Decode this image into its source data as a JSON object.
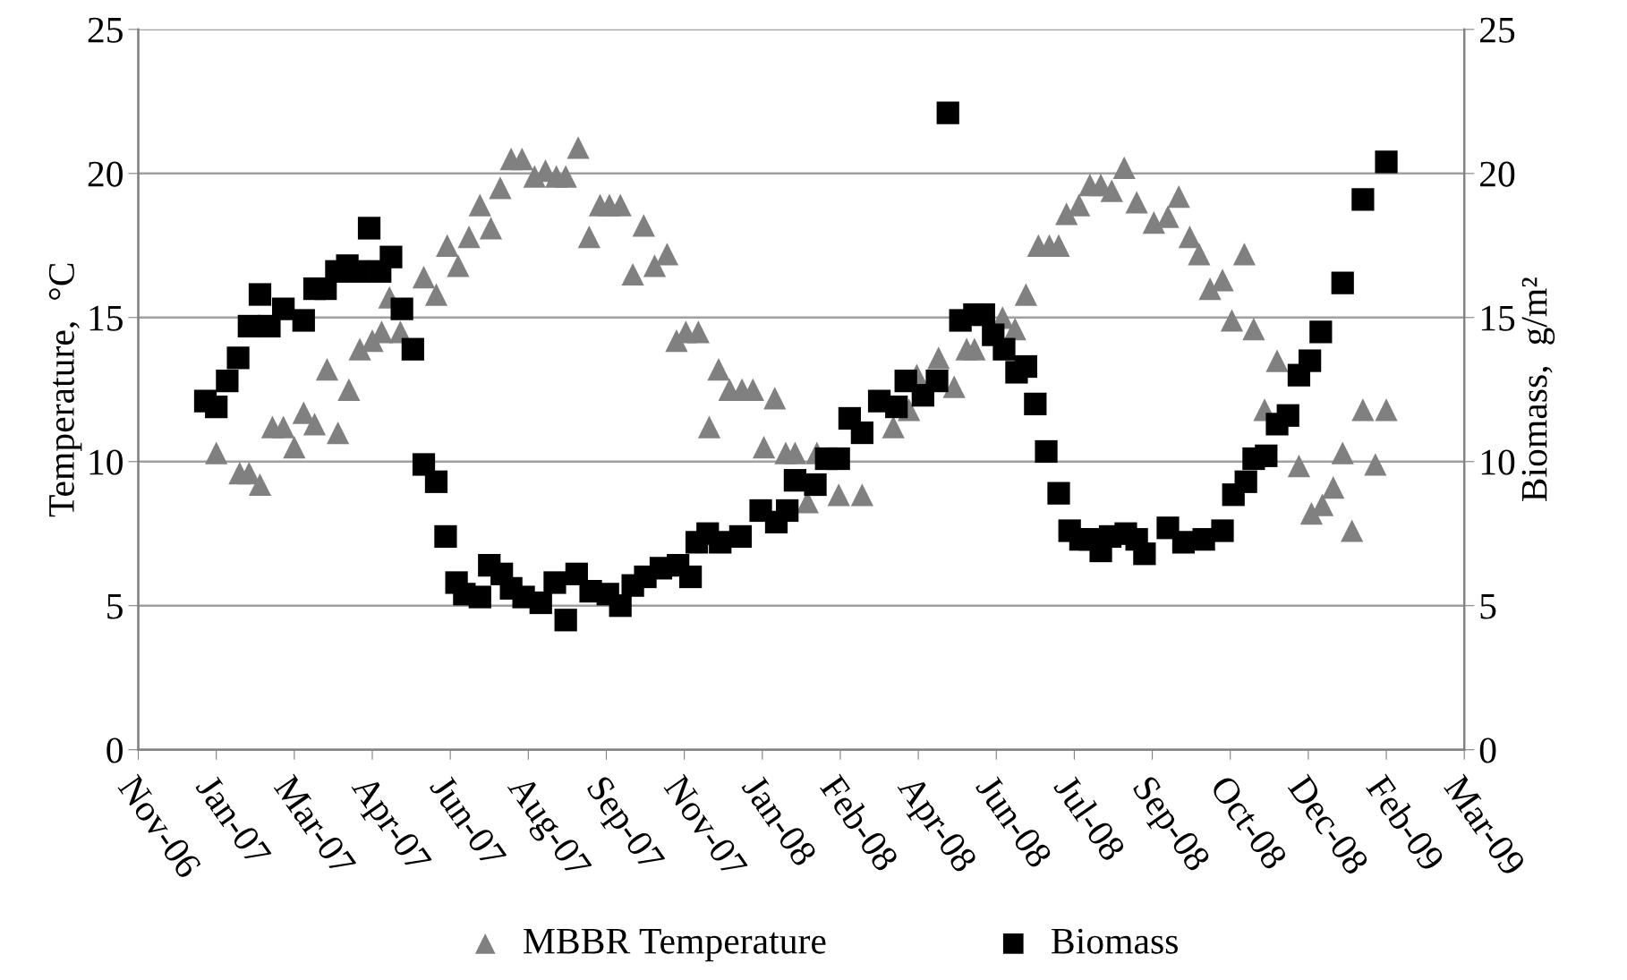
{
  "chart_data": {
    "type": "scatter",
    "ylabel": "Temperature,  °C",
    "y2label": "Biomass,  g/m²",
    "xlim": [
      "2006-11-30",
      "2009-03-29"
    ],
    "xticks": [
      {
        "value": "2006-11-30",
        "label": "Nov-06"
      },
      {
        "value": "2007-01-19",
        "label": "Jan-07"
      },
      {
        "value": "2007-03-10",
        "label": "Mar-07"
      },
      {
        "value": "2007-04-29",
        "label": "Apr-07"
      },
      {
        "value": "2007-06-18",
        "label": "Jun-07"
      },
      {
        "value": "2007-08-07",
        "label": "Aug-07"
      },
      {
        "value": "2007-09-26",
        "label": "Sep-07"
      },
      {
        "value": "2007-11-15",
        "label": "Nov-07"
      },
      {
        "value": "2008-01-04",
        "label": "Jan-08"
      },
      {
        "value": "2008-02-23",
        "label": "Feb-08"
      },
      {
        "value": "2008-04-13",
        "label": "Apr-08"
      },
      {
        "value": "2008-06-02",
        "label": "Jun-08"
      },
      {
        "value": "2008-07-22",
        "label": "Jul-08"
      },
      {
        "value": "2008-09-10",
        "label": "Sep-08"
      },
      {
        "value": "2008-10-30",
        "label": "Oct-08"
      },
      {
        "value": "2008-12-19",
        "label": "Dec-08"
      },
      {
        "value": "2009-02-07",
        "label": "Feb-09"
      },
      {
        "value": "2009-03-29",
        "label": "Mar-09"
      }
    ],
    "ylim": [
      0,
      25
    ],
    "yticks": [
      0,
      5,
      10,
      15,
      20,
      25
    ],
    "y2lim": [
      0,
      25
    ],
    "y2ticks": [
      0,
      5,
      10,
      15,
      20,
      25
    ],
    "grid": "y",
    "legend": "bottom",
    "series": [
      {
        "name": "MBBR Temperature",
        "color": "#808080",
        "marker": "triangle",
        "x": [
          "2007-01-19",
          "2007-02-03",
          "2007-02-09",
          "2007-02-16",
          "2007-02-24",
          "2007-03-03",
          "2007-03-10",
          "2007-03-16",
          "2007-03-23",
          "2007-03-31",
          "2007-04-07",
          "2007-04-14",
          "2007-04-21",
          "2007-04-29",
          "2007-05-05",
          "2007-05-10",
          "2007-05-17",
          "2007-06-01",
          "2007-06-09",
          "2007-06-16",
          "2007-06-23",
          "2007-06-30",
          "2007-07-07",
          "2007-07-14",
          "2007-07-20",
          "2007-07-27",
          "2007-08-03",
          "2007-08-11",
          "2007-08-18",
          "2007-08-25",
          "2007-08-31",
          "2007-09-08",
          "2007-09-15",
          "2007-09-22",
          "2007-09-28",
          "2007-10-05",
          "2007-10-13",
          "2007-10-20",
          "2007-10-27",
          "2007-11-04",
          "2007-11-10",
          "2007-11-16",
          "2007-11-24",
          "2007-12-01",
          "2007-12-07",
          "2007-12-14",
          "2007-12-22",
          "2007-12-29",
          "2008-01-05",
          "2008-01-12",
          "2008-01-19",
          "2008-01-25",
          "2008-02-02",
          "2008-02-08",
          "2008-02-22",
          "2008-03-08",
          "2008-03-28",
          "2008-04-07",
          "2008-04-12",
          "2008-04-26",
          "2008-05-06",
          "2008-05-14",
          "2008-05-19",
          "2008-06-06",
          "2008-06-14",
          "2008-06-21",
          "2008-06-29",
          "2008-07-06",
          "2008-07-12",
          "2008-07-17",
          "2008-07-25",
          "2008-08-01",
          "2008-08-08",
          "2008-08-15",
          "2008-08-23",
          "2008-08-31",
          "2008-09-11",
          "2008-09-20",
          "2008-09-27",
          "2008-10-04",
          "2008-10-10",
          "2008-10-17",
          "2008-10-25",
          "2008-10-31",
          "2008-11-08",
          "2008-11-14",
          "2008-11-21",
          "2008-11-29",
          "2008-12-06",
          "2008-12-13",
          "2008-12-21",
          "2008-12-28",
          "2009-01-04",
          "2009-01-10",
          "2009-01-16",
          "2009-01-23",
          "2009-01-31",
          "2009-02-07"
        ],
        "values": [
          10.3,
          9.6,
          9.6,
          9.2,
          11.2,
          11.2,
          10.5,
          11.7,
          11.3,
          13.2,
          11.0,
          12.5,
          13.9,
          14.2,
          14.5,
          15.7,
          14.5,
          16.4,
          15.8,
          17.5,
          16.8,
          17.8,
          18.9,
          18.1,
          19.5,
          20.5,
          20.5,
          19.9,
          20.1,
          19.9,
          19.9,
          20.9,
          17.8,
          18.9,
          18.9,
          18.9,
          16.5,
          18.2,
          16.8,
          17.2,
          14.2,
          14.5,
          14.5,
          11.2,
          13.2,
          12.5,
          12.5,
          12.5,
          10.5,
          12.2,
          10.3,
          10.3,
          8.6,
          10.3,
          8.85,
          8.85,
          11.2,
          11.8,
          13.0,
          13.6,
          12.6,
          13.9,
          13.9,
          15.0,
          14.6,
          15.8,
          17.5,
          17.5,
          17.5,
          18.6,
          18.9,
          19.6,
          19.6,
          19.4,
          20.2,
          19.0,
          18.3,
          18.5,
          19.2,
          17.8,
          17.2,
          16.0,
          16.3,
          14.9,
          17.2,
          14.6,
          11.8,
          13.5,
          null,
          9.85,
          8.2,
          8.5,
          9.1,
          10.3,
          7.6,
          11.8,
          9.9,
          11.8
        ]
      },
      {
        "name": "Biomass",
        "color": "#000000",
        "marker": "square",
        "axis": "y2",
        "x": [
          "2007-01-12",
          "2007-01-19",
          "2007-01-26",
          "2007-02-02",
          "2007-02-09",
          "2007-02-16",
          "2007-02-22",
          "2007-03-03",
          "2007-03-16",
          "2007-03-23",
          "2007-03-30",
          "2007-04-06",
          "2007-04-13",
          "2007-04-20",
          "2007-04-27",
          "2007-05-04",
          "2007-05-11",
          "2007-05-18",
          "2007-05-25",
          "2007-06-01",
          "2007-06-09",
          "2007-06-15",
          "2007-06-22",
          "2007-06-27",
          "2007-07-07",
          "2007-07-13",
          "2007-07-21",
          "2007-07-27",
          "2007-08-04",
          "2007-08-15",
          "2007-08-24",
          "2007-08-31",
          "2007-09-07",
          "2007-09-16",
          "2007-09-27",
          "2007-10-05",
          "2007-10-13",
          "2007-10-21",
          "2007-10-31",
          "2007-11-11",
          "2007-11-19",
          "2007-11-23",
          "2007-11-30",
          "2007-12-08",
          "2007-12-21",
          "2008-01-03",
          "2008-01-13",
          "2008-01-20",
          "2008-01-25",
          "2008-02-07",
          "2008-02-14",
          "2008-02-22",
          "2008-02-29",
          "2008-03-08",
          "2008-03-19",
          "2008-03-30",
          "2008-04-05",
          "2008-04-16",
          "2008-04-25",
          "2008-05-02",
          "2008-05-10",
          "2008-05-19",
          "2008-05-25",
          "2008-05-31",
          "2008-06-07",
          "2008-06-15",
          "2008-06-21",
          "2008-06-27",
          "2008-07-04",
          "2008-07-12",
          "2008-07-19",
          "2008-07-26",
          "2008-08-01",
          "2008-08-08",
          "2008-08-14",
          "2008-08-24",
          "2008-08-31",
          "2008-09-05",
          "2008-09-20",
          "2008-09-30",
          "2008-10-13",
          "2008-10-25",
          "2008-11-01",
          "2008-11-09",
          "2008-11-14",
          "2008-11-22",
          "2008-11-29",
          "2008-12-06",
          "2008-12-13",
          "2008-12-20",
          "2008-12-27",
          "2009-01-10",
          "2009-01-23",
          "2009-02-07"
        ],
        "values": [
          12.1,
          11.9,
          12.8,
          13.6,
          14.7,
          15.8,
          14.7,
          15.3,
          14.9,
          16.0,
          16.0,
          16.6,
          16.8,
          16.6,
          18.1,
          16.6,
          17.1,
          15.3,
          13.9,
          9.9,
          9.3,
          7.4,
          5.8,
          5.4,
          5.3,
          6.4,
          6.1,
          5.6,
          5.3,
          5.1,
          5.8,
          4.5,
          6.1,
          5.5,
          5.4,
          5.0,
          5.7,
          6.0,
          6.3,
          6.4,
          6.0,
          7.2,
          7.5,
          7.2,
          7.4,
          8.3,
          7.9,
          8.3,
          9.35,
          9.2,
          10.1,
          10.1,
          11.5,
          11.0,
          12.1,
          11.9,
          12.8,
          12.3,
          12.8,
          22.1,
          14.9,
          15.1,
          15.1,
          14.4,
          13.9,
          13.1,
          13.3,
          12.0,
          10.35,
          8.9,
          7.6,
          7.3,
          7.3,
          6.9,
          7.4,
          7.5,
          7.3,
          6.8,
          7.7,
          7.2,
          7.3,
          7.6,
          8.85,
          9.3,
          10.1,
          10.2,
          11.3,
          11.6,
          13.0,
          13.5,
          14.5,
          16.2,
          19.1,
          20.4
        ]
      }
    ]
  }
}
